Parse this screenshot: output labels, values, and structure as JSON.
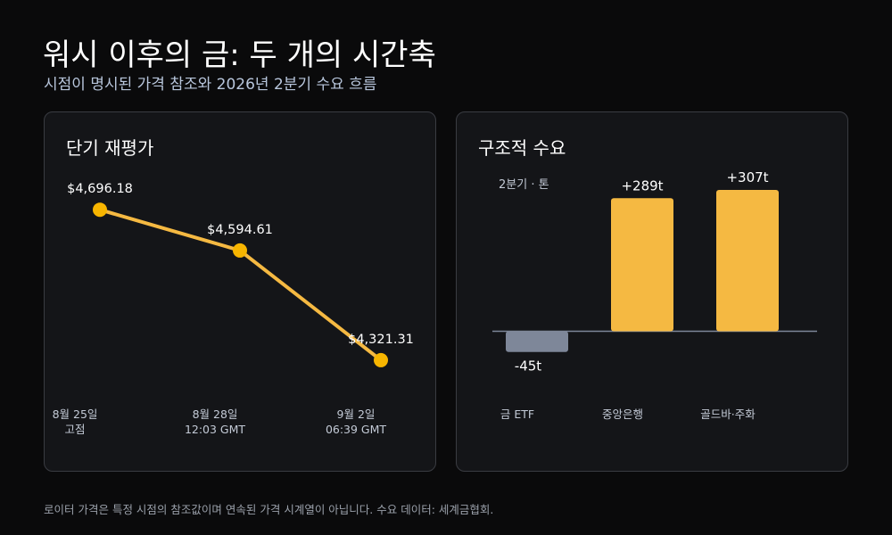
{
  "page": {
    "title": "워시 이후의 금: 두 개의 시간축",
    "subtitle": "시점이 명시된 가격 참조와 2026년 2분기 수요 흐름",
    "footer": "로이터 가격은 특정 시점의 참조값이며 연속된 가격 시계열이 아닙니다. 수요 데이터: 세계금협회."
  },
  "colors": {
    "background": "#0a0a0b",
    "panel": "#141518",
    "accent": "#f5b942",
    "line": "#f5b942",
    "point": "#f7b500",
    "negative_bar": "#7e8799",
    "axis_label": "#c3cad6"
  },
  "chart_data": [
    {
      "type": "line",
      "title": "단기 재평가",
      "x": [
        "8월 25일",
        "8월 28일",
        "9월 2일"
      ],
      "x_sublabels": [
        "고점",
        "12:03 GMT",
        "06:39 GMT"
      ],
      "values": [
        4696.18,
        4594.61,
        4321.31
      ],
      "data_labels": [
        "$4,696.18",
        "$4,594.61",
        "$4,321.31"
      ],
      "ylim": [
        4250,
        4750
      ],
      "grid": false,
      "legend": "none"
    },
    {
      "type": "bar",
      "title": "구조적 수요",
      "unit_label": "2분기 · 톤",
      "categories": [
        "금 ETF",
        "중앙은행",
        "골드바·주화"
      ],
      "values": [
        -45,
        289,
        307
      ],
      "data_labels": [
        "-45t",
        "+289t",
        "+307t"
      ],
      "ylim": [
        -70,
        340
      ],
      "grid": false,
      "legend": "none"
    }
  ]
}
